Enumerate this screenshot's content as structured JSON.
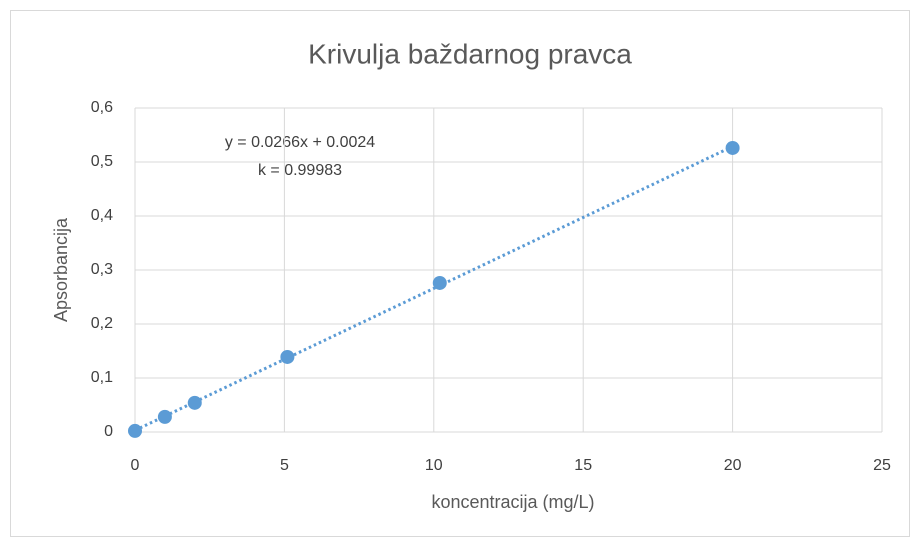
{
  "chart_data": {
    "type": "scatter",
    "title": "Krivulja baždarnog pravca",
    "xlabel": "koncentracija (mg/L)",
    "ylabel": "Apsorbancija",
    "annotations": [
      "y = 0.0266x + 0.0024",
      "k = 0.99983"
    ],
    "series": [
      {
        "name": "Apsorbancija",
        "color": "#5b9bd5",
        "x": [
          0,
          1,
          2,
          5.1,
          10.2,
          20
        ],
        "values": [
          0.002,
          0.028,
          0.054,
          0.139,
          0.276,
          0.526
        ]
      }
    ],
    "trendline": true,
    "xlim": [
      0,
      25
    ],
    "xticks": [
      0,
      5,
      10,
      15,
      20,
      25
    ],
    "ylim": [
      0,
      0.6
    ],
    "yticks": [
      {
        "value": 0,
        "label": "0"
      },
      {
        "value": 0.1,
        "label": "0,1"
      },
      {
        "value": 0.2,
        "label": "0,2"
      },
      {
        "value": 0.3,
        "label": "0,3"
      },
      {
        "value": 0.4,
        "label": "0,4"
      },
      {
        "value": 0.5,
        "label": "0,5"
      },
      {
        "value": 0.6,
        "label": "0,6"
      }
    ],
    "grid": true
  }
}
